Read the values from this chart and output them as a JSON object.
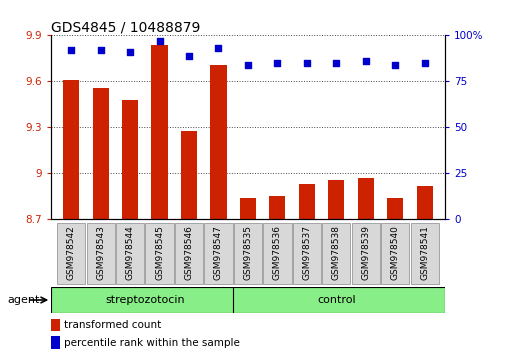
{
  "title": "GDS4845 / 10488879",
  "samples": [
    "GSM978542",
    "GSM978543",
    "GSM978544",
    "GSM978545",
    "GSM978546",
    "GSM978547",
    "GSM978535",
    "GSM978536",
    "GSM978537",
    "GSM978538",
    "GSM978539",
    "GSM978540",
    "GSM978541"
  ],
  "groups": [
    "streptozotocin",
    "streptozotocin",
    "streptozotocin",
    "streptozotocin",
    "streptozotocin",
    "streptozotocin",
    "control",
    "control",
    "control",
    "control",
    "control",
    "control",
    "control"
  ],
  "bar_values": [
    9.61,
    9.56,
    9.48,
    9.84,
    9.28,
    9.71,
    8.84,
    8.85,
    8.93,
    8.96,
    8.97,
    8.84,
    8.92
  ],
  "pct_values": [
    92,
    92,
    91,
    97,
    89,
    93,
    84,
    85,
    85,
    85,
    86,
    84,
    85
  ],
  "y_min": 8.7,
  "y_max": 9.9,
  "y_ticks": [
    8.7,
    9.0,
    9.3,
    9.6,
    9.9
  ],
  "y_tick_labels": [
    "8.7",
    "9",
    "9.3",
    "9.6",
    "9.9"
  ],
  "y2_ticks": [
    0,
    25,
    50,
    75,
    100
  ],
  "y2_tick_labels": [
    "0",
    "25",
    "50",
    "75",
    "100%"
  ],
  "bar_color": "#cc2200",
  "dot_color": "#0000cc",
  "group_color": "#88ee88",
  "group_label_streptozotocin": "streptozotocin",
  "group_label_control": "control",
  "agent_label": "agent",
  "legend_bar_label": "transformed count",
  "legend_dot_label": "percentile rank within the sample",
  "title_fontsize": 10,
  "tick_fontsize": 7.5,
  "background_color": "#ffffff",
  "plot_bg_color": "#ffffff",
  "grid_color": "#000000",
  "x_tick_bg": "#d8d8d8"
}
